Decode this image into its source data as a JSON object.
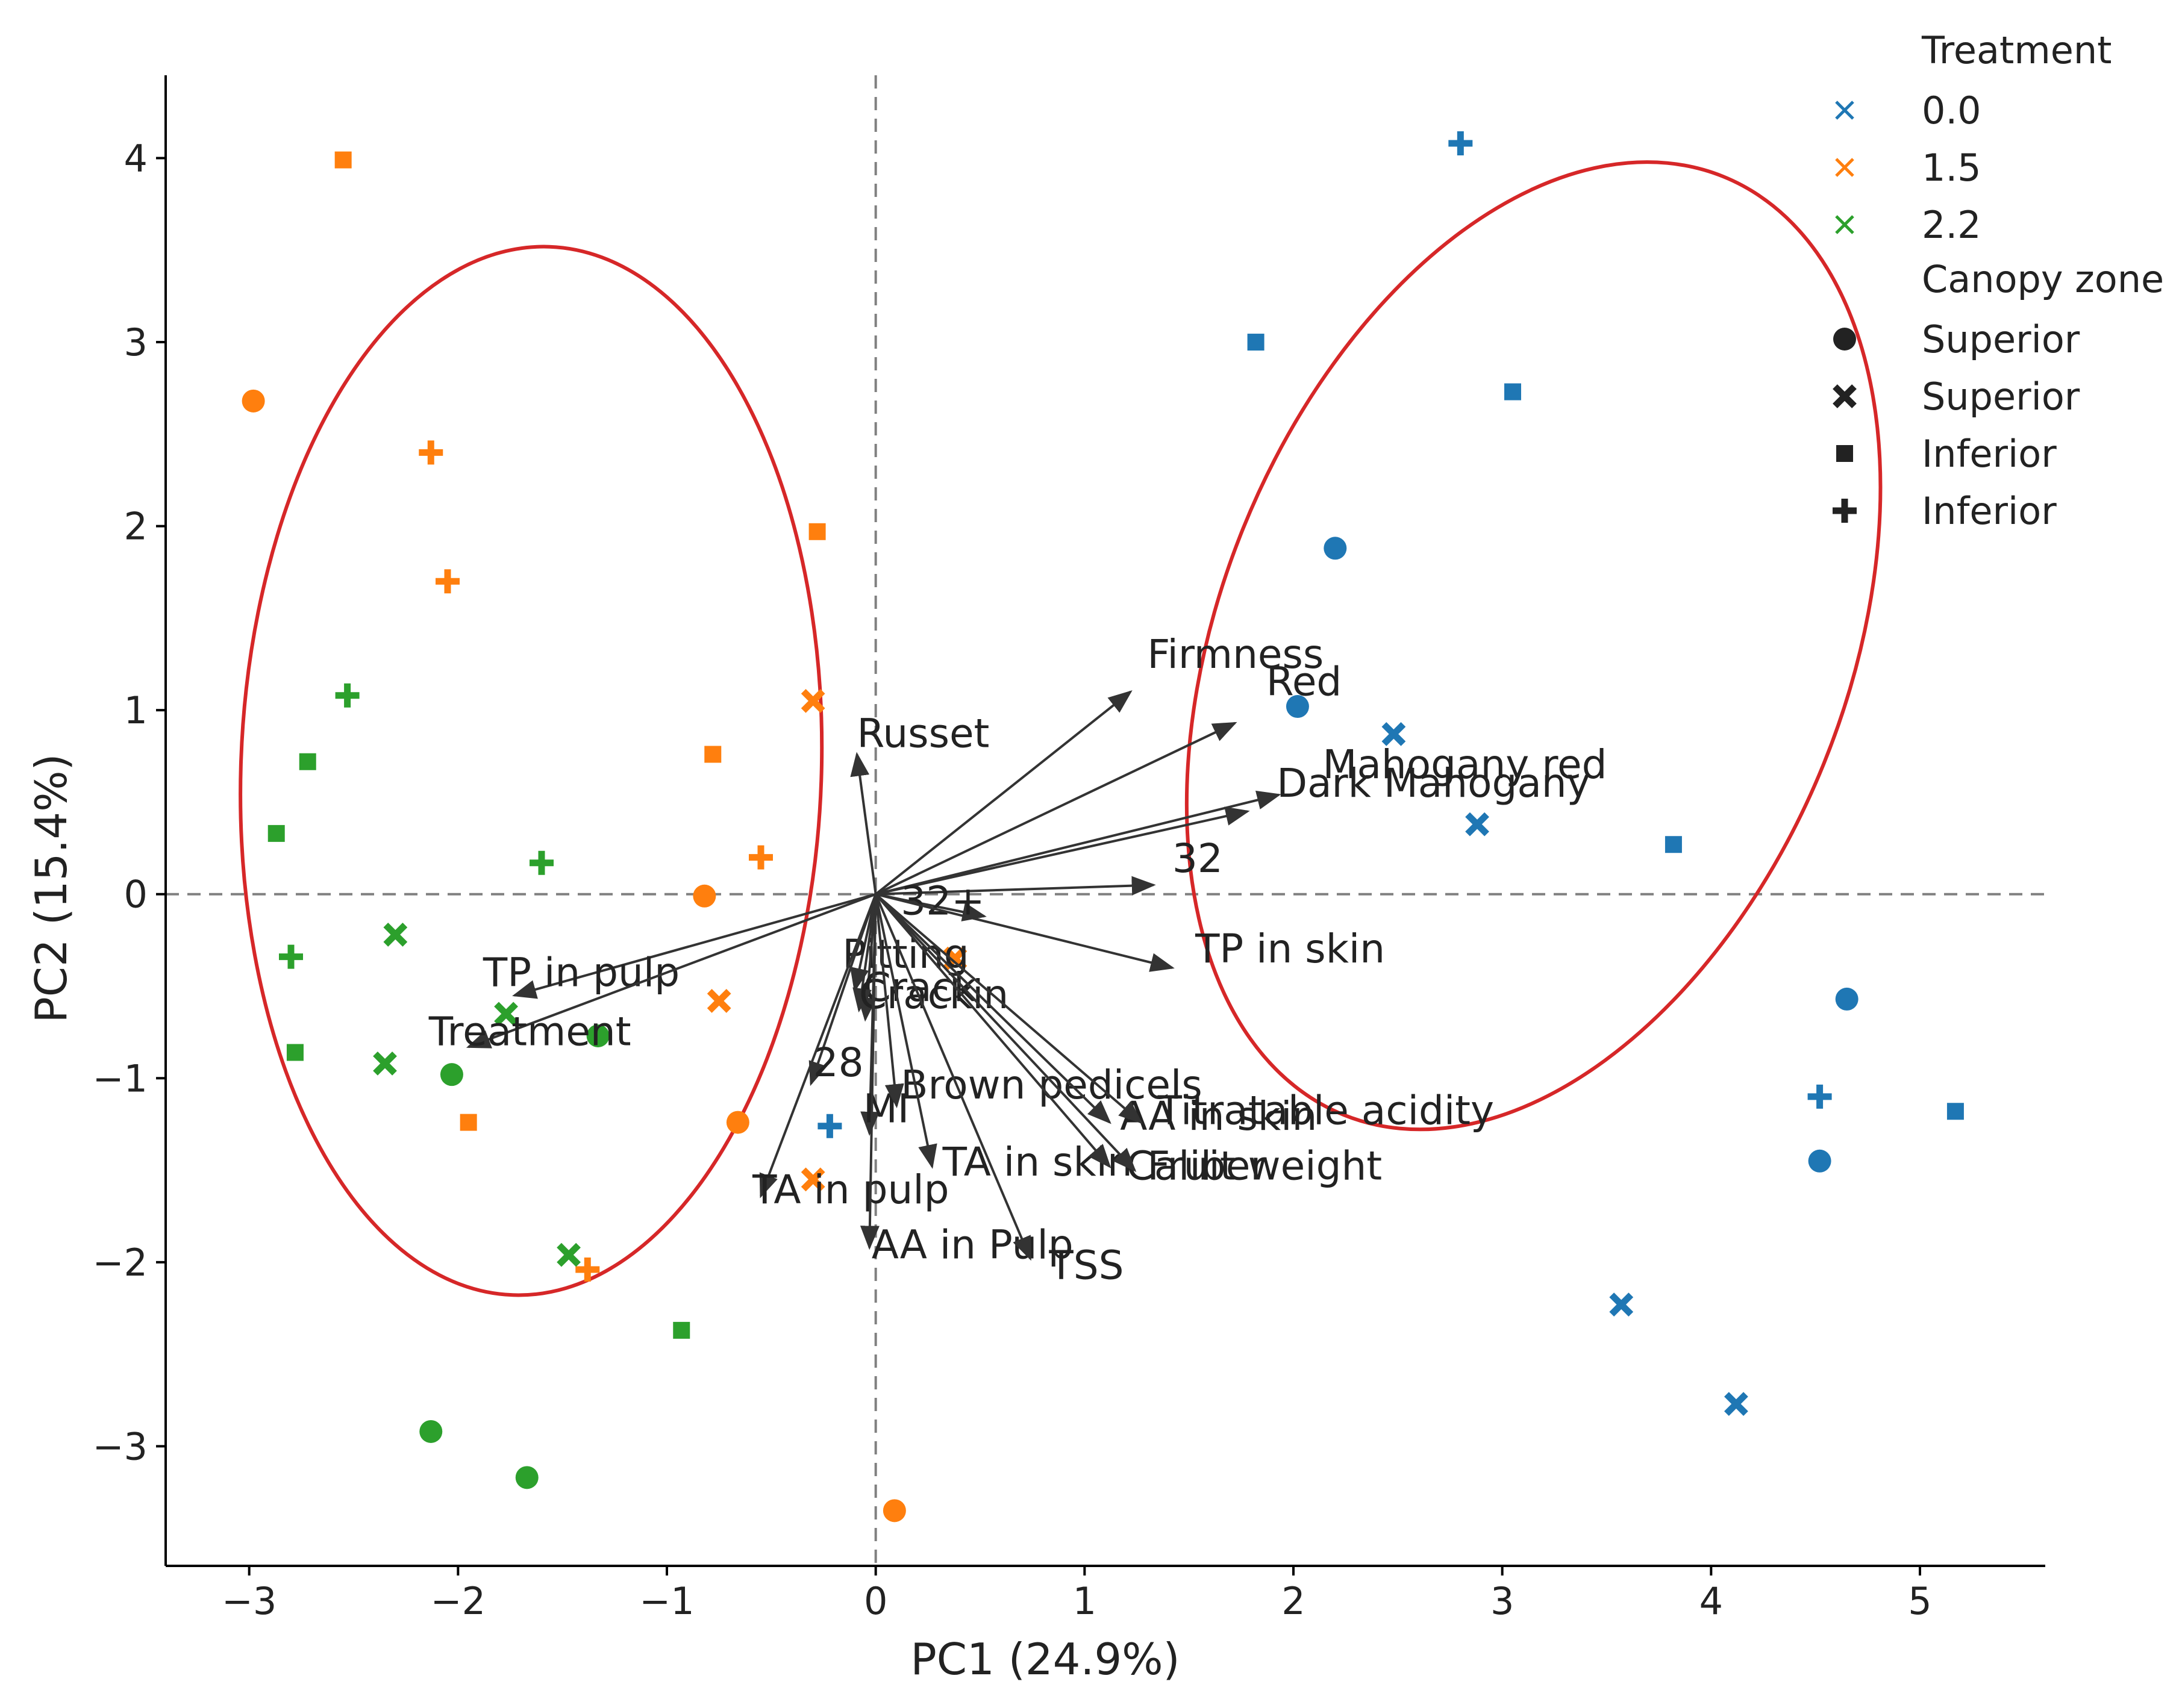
{
  "chart_data": {
    "type": "scatter",
    "subtype": "pca-biplot",
    "xlabel": "PC1 (24.9%)",
    "ylabel": "PC2 (15.4%)",
    "xlim": [
      -3.4,
      5.6
    ],
    "ylim": [
      -3.65,
      4.45
    ],
    "xticks": [
      -3,
      -2,
      -1,
      0,
      1,
      2,
      3,
      4,
      5
    ],
    "xtick_labels": [
      "−3",
      "−2",
      "−1",
      "0",
      "1",
      "2",
      "3",
      "4",
      "5"
    ],
    "yticks": [
      -3,
      -2,
      -1,
      0,
      1,
      2,
      3,
      4
    ],
    "ytick_labels": [
      "−3",
      "−2",
      "−1",
      "0",
      "1",
      "2",
      "3",
      "4"
    ],
    "grid": false,
    "reference_lines": {
      "x": 0,
      "y": 0,
      "style": "dashed"
    },
    "colors": {
      "0.0": "#1f77b4",
      "1.5": "#ff7f0e",
      "2.2": "#2ca02c",
      "ellipse": "#d62728",
      "arrow": "#333333"
    },
    "legend": {
      "position": "top-right",
      "treatment_title": "Treatment",
      "treatment_items": [
        {
          "label": "0.0",
          "group": "0.0",
          "marker": "x"
        },
        {
          "label": "1.5",
          "group": "1.5",
          "marker": "x"
        },
        {
          "label": "2.2",
          "group": "2.2",
          "marker": "x"
        }
      ],
      "canopy_title": "Canopy zone",
      "canopy_items": [
        {
          "label": "Superior",
          "marker": "circle"
        },
        {
          "label": "Superior",
          "marker": "X"
        },
        {
          "label": "Inferior",
          "marker": "square"
        },
        {
          "label": "Inferior",
          "marker": "plus"
        }
      ]
    },
    "points": [
      {
        "x": 2.8,
        "y": 4.08,
        "group": "0.0",
        "marker": "plus"
      },
      {
        "x": 1.82,
        "y": 3.0,
        "group": "0.0",
        "marker": "square"
      },
      {
        "x": 3.05,
        "y": 2.73,
        "group": "0.0",
        "marker": "square"
      },
      {
        "x": 2.2,
        "y": 1.88,
        "group": "0.0",
        "marker": "circle"
      },
      {
        "x": 2.02,
        "y": 1.02,
        "group": "0.0",
        "marker": "circle"
      },
      {
        "x": 2.48,
        "y": 0.87,
        "group": "0.0",
        "marker": "X"
      },
      {
        "x": 2.88,
        "y": 0.38,
        "group": "0.0",
        "marker": "X"
      },
      {
        "x": 3.82,
        "y": 0.27,
        "group": "0.0",
        "marker": "square"
      },
      {
        "x": 4.65,
        "y": -0.57,
        "group": "0.0",
        "marker": "circle"
      },
      {
        "x": 4.52,
        "y": -1.1,
        "group": "0.0",
        "marker": "plus"
      },
      {
        "x": 5.17,
        "y": -1.18,
        "group": "0.0",
        "marker": "square"
      },
      {
        "x": 4.52,
        "y": -1.45,
        "group": "0.0",
        "marker": "circle"
      },
      {
        "x": 3.57,
        "y": -2.23,
        "group": "0.0",
        "marker": "X"
      },
      {
        "x": 4.12,
        "y": -2.77,
        "group": "0.0",
        "marker": "X"
      },
      {
        "x": -0.22,
        "y": -1.26,
        "group": "0.0",
        "marker": "plus"
      },
      {
        "x": -2.55,
        "y": 3.99,
        "group": "1.5",
        "marker": "square"
      },
      {
        "x": -2.98,
        "y": 2.68,
        "group": "1.5",
        "marker": "circle"
      },
      {
        "x": -2.13,
        "y": 2.4,
        "group": "1.5",
        "marker": "plus"
      },
      {
        "x": -2.05,
        "y": 1.7,
        "group": "1.5",
        "marker": "plus"
      },
      {
        "x": -0.28,
        "y": 1.97,
        "group": "1.5",
        "marker": "square"
      },
      {
        "x": -0.3,
        "y": 1.05,
        "group": "1.5",
        "marker": "X"
      },
      {
        "x": -0.78,
        "y": 0.76,
        "group": "1.5",
        "marker": "square"
      },
      {
        "x": -0.55,
        "y": 0.2,
        "group": "1.5",
        "marker": "plus"
      },
      {
        "x": -0.82,
        "y": -0.01,
        "group": "1.5",
        "marker": "circle"
      },
      {
        "x": 0.38,
        "y": -0.35,
        "group": "1.5",
        "marker": "X"
      },
      {
        "x": -0.75,
        "y": -0.58,
        "group": "1.5",
        "marker": "X"
      },
      {
        "x": -1.95,
        "y": -1.24,
        "group": "1.5",
        "marker": "square"
      },
      {
        "x": -0.66,
        "y": -1.24,
        "group": "1.5",
        "marker": "circle"
      },
      {
        "x": -0.3,
        "y": -1.55,
        "group": "1.5",
        "marker": "X"
      },
      {
        "x": -1.38,
        "y": -2.04,
        "group": "1.5",
        "marker": "plus"
      },
      {
        "x": 0.09,
        "y": -3.35,
        "group": "1.5",
        "marker": "circle"
      },
      {
        "x": -2.53,
        "y": 1.08,
        "group": "2.2",
        "marker": "plus"
      },
      {
        "x": -2.72,
        "y": 0.72,
        "group": "2.2",
        "marker": "square"
      },
      {
        "x": -2.87,
        "y": 0.33,
        "group": "2.2",
        "marker": "square"
      },
      {
        "x": -1.6,
        "y": 0.17,
        "group": "2.2",
        "marker": "plus"
      },
      {
        "x": -2.3,
        "y": -0.22,
        "group": "2.2",
        "marker": "X"
      },
      {
        "x": -2.8,
        "y": -0.34,
        "group": "2.2",
        "marker": "plus"
      },
      {
        "x": -1.77,
        "y": -0.65,
        "group": "2.2",
        "marker": "X"
      },
      {
        "x": -1.33,
        "y": -0.77,
        "group": "2.2",
        "marker": "circle"
      },
      {
        "x": -2.78,
        "y": -0.86,
        "group": "2.2",
        "marker": "square"
      },
      {
        "x": -2.35,
        "y": -0.92,
        "group": "2.2",
        "marker": "X"
      },
      {
        "x": -2.03,
        "y": -0.98,
        "group": "2.2",
        "marker": "circle"
      },
      {
        "x": -1.47,
        "y": -1.96,
        "group": "2.2",
        "marker": "X"
      },
      {
        "x": -0.93,
        "y": -2.37,
        "group": "2.2",
        "marker": "square"
      },
      {
        "x": -2.13,
        "y": -2.92,
        "group": "2.2",
        "marker": "circle"
      },
      {
        "x": -1.67,
        "y": -3.17,
        "group": "2.2",
        "marker": "circle"
      }
    ],
    "loadings": [
      {
        "name": "Firmness",
        "x": 1.22,
        "y": 1.1,
        "label_x": 1.3,
        "label_y": 1.23
      },
      {
        "name": "Red",
        "x": 1.72,
        "y": 0.93,
        "label_x": 1.87,
        "label_y": 1.08
      },
      {
        "name": "Mahogany red",
        "x": 1.78,
        "y": 0.45,
        "label_x": 2.14,
        "label_y": 0.63
      },
      {
        "name": "Dark Mahogany",
        "x": 1.93,
        "y": 0.54,
        "label_x": 1.92,
        "label_y": 0.53
      },
      {
        "name": "Russet",
        "x": -0.09,
        "y": 0.76,
        "label_x": -0.09,
        "label_y": 0.8
      },
      {
        "name": "32",
        "x": 1.33,
        "y": 0.05,
        "label_x": 1.42,
        "label_y": 0.12
      },
      {
        "name": "32+",
        "x": 0.52,
        "y": -0.12,
        "label_x": 0.12,
        "label_y": -0.11
      },
      {
        "name": "TP in skin",
        "x": 1.42,
        "y": -0.4,
        "label_x": 1.53,
        "label_y": -0.37
      },
      {
        "name": "TP in pulp",
        "x": -1.73,
        "y": -0.55,
        "label_x": -1.88,
        "label_y": -0.5
      },
      {
        "name": "Treatment",
        "x": -1.95,
        "y": -0.83,
        "label_x": -2.14,
        "label_y": -0.82
      },
      {
        "name": "Pitting",
        "x": -0.1,
        "y": -0.52,
        "label_x": -0.16,
        "label_y": -0.4
      },
      {
        "name": "Crack",
        "x": -0.05,
        "y": -0.68,
        "label_x": -0.06,
        "label_y": -0.58
      },
      {
        "name": "Crackin",
        "x": -0.08,
        "y": -0.63,
        "label_x": -0.08,
        "label_y": -0.62
      },
      {
        "name": "28",
        "x": -0.31,
        "y": -1.03,
        "label_x": -0.3,
        "label_y": -0.99
      },
      {
        "name": "MI",
        "x": -0.03,
        "y": -1.3,
        "label_x": -0.06,
        "label_y": -1.24
      },
      {
        "name": "Brown pedicels",
        "x": 0.1,
        "y": -1.15,
        "label_x": 0.12,
        "label_y": -1.11
      },
      {
        "name": "AA in skin",
        "x": 1.12,
        "y": -1.24,
        "label_x": 1.17,
        "label_y": -1.28
      },
      {
        "name": "Titratable acidity",
        "x": 1.27,
        "y": -1.24,
        "label_x": 1.35,
        "label_y": -1.25
      },
      {
        "name": "TA in skin",
        "x": 0.27,
        "y": -1.48,
        "label_x": 0.32,
        "label_y": -1.53
      },
      {
        "name": "Caliber",
        "x": 1.12,
        "y": -1.48,
        "label_x": 1.2,
        "label_y": -1.55
      },
      {
        "name": "Fruit weight",
        "x": 1.24,
        "y": -1.5,
        "label_x": 1.3,
        "label_y": -1.55
      },
      {
        "name": "TA in pulp",
        "x": -0.55,
        "y": -1.64,
        "label_x": -0.59,
        "label_y": -1.68
      },
      {
        "name": "AA in Pulp",
        "x": -0.03,
        "y": -1.92,
        "label_x": -0.02,
        "label_y": -1.98
      },
      {
        "name": "TSS",
        "x": 0.74,
        "y": -1.98,
        "label_x": 0.83,
        "label_y": -2.09
      }
    ],
    "ellipses": [
      {
        "cx": -1.65,
        "cy": 0.67,
        "rx": 1.39,
        "ry": 2.85,
        "angle_deg": 2
      },
      {
        "cx": 3.15,
        "cy": 1.35,
        "rx": 1.5,
        "ry": 2.75,
        "angle_deg": 22
      }
    ]
  }
}
